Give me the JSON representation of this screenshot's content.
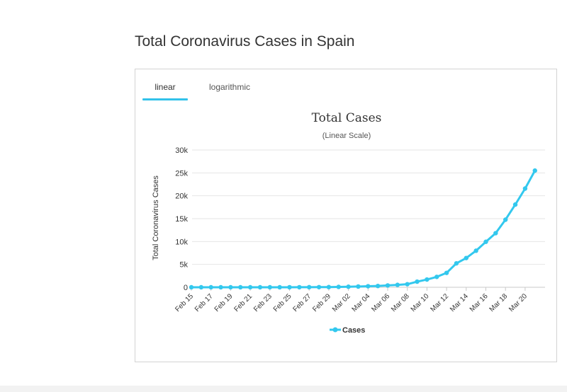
{
  "page": {
    "title": "Total Coronavirus Cases in Spain"
  },
  "tabs": [
    {
      "label": "linear",
      "active": true
    },
    {
      "label": "logarithmic",
      "active": false
    }
  ],
  "colors": {
    "accent": "#32c2ea",
    "series": "#33c8ee",
    "grid": "#e6e6e6"
  },
  "chart_data": {
    "type": "line",
    "title": "Total Cases",
    "subtitle": "(Linear Scale)",
    "xlabel": "",
    "ylabel": "Total Coronavirus Cases",
    "ylim": [
      0,
      30000
    ],
    "yticks": [
      0,
      5000,
      10000,
      15000,
      20000,
      25000,
      30000
    ],
    "ytick_labels": [
      "0",
      "5k",
      "10k",
      "15k",
      "20k",
      "25k",
      "30k"
    ],
    "x": [
      "Feb 15",
      "Feb 16",
      "Feb 17",
      "Feb 18",
      "Feb 19",
      "Feb 20",
      "Feb 21",
      "Feb 22",
      "Feb 23",
      "Feb 24",
      "Feb 25",
      "Feb 26",
      "Feb 27",
      "Feb 28",
      "Feb 29",
      "Mar 01",
      "Mar 02",
      "Mar 03",
      "Mar 04",
      "Mar 05",
      "Mar 06",
      "Mar 07",
      "Mar 08",
      "Mar 09",
      "Mar 10",
      "Mar 11",
      "Mar 12",
      "Mar 13",
      "Mar 14",
      "Mar 15",
      "Mar 16",
      "Mar 17",
      "Mar 18",
      "Mar 19",
      "Mar 20",
      "Mar 21"
    ],
    "xtick_labels": [
      "Feb 15",
      "Feb 17",
      "Feb 19",
      "Feb 21",
      "Feb 23",
      "Feb 25",
      "Feb 27",
      "Feb 29",
      "Mar 02",
      "Mar 04",
      "Mar 06",
      "Mar 08",
      "Mar 10",
      "Mar 12",
      "Mar 14",
      "Mar 16",
      "Mar 18",
      "Mar 20"
    ],
    "grid": true,
    "legend": "bottom",
    "series": [
      {
        "name": "Cases",
        "values": [
          2,
          2,
          2,
          2,
          2,
          2,
          2,
          2,
          2,
          2,
          8,
          13,
          23,
          32,
          45,
          84,
          120,
          165,
          228,
          282,
          401,
          525,
          674,
          1231,
          1695,
          2277,
          3146,
          5232,
          6391,
          7988,
          9942,
          11826,
          14769,
          18077,
          21571,
          25496
        ]
      }
    ]
  }
}
